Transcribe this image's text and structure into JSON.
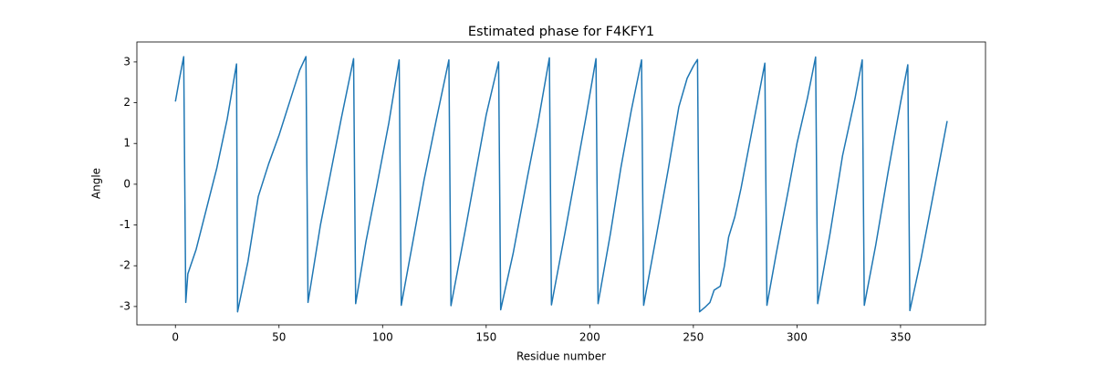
{
  "chart_data": {
    "type": "line",
    "title": "Estimated phase for F4KFY1",
    "x_label": "Residue number",
    "y_label": "Angle",
    "x": [
      0,
      2,
      4,
      5,
      6,
      10,
      15,
      20,
      25,
      29.5,
      30,
      35,
      40,
      45,
      50,
      55,
      60,
      63,
      64,
      70,
      75,
      80,
      86,
      87,
      92,
      97,
      103,
      108,
      109,
      115,
      120,
      126,
      132,
      133,
      140,
      145,
      150,
      156,
      157,
      163,
      170,
      175,
      180.5,
      181.5,
      188,
      193,
      198,
      203,
      204,
      210,
      215,
      220,
      225,
      226,
      232,
      238,
      243,
      247,
      250,
      252,
      253,
      256,
      258,
      260,
      263,
      265,
      267,
      270,
      273,
      279,
      284.5,
      285.5,
      290,
      296,
      300,
      305,
      309,
      310,
      316,
      322,
      328,
      331.5,
      332.5,
      338,
      344,
      350,
      353.5,
      354.5,
      360,
      366,
      372.5
    ],
    "series": [
      {
        "name": "phase",
        "color": "#1f77b4",
        "values": [
          2.03,
          2.6,
          3.13,
          -2.9,
          -2.2,
          -1.6,
          -0.6,
          0.4,
          1.6,
          2.95,
          -3.13,
          -1.9,
          -0.3,
          0.5,
          1.2,
          2.0,
          2.8,
          3.13,
          -2.9,
          -1.0,
          0.3,
          1.6,
          3.08,
          -2.93,
          -1.4,
          -0.1,
          1.5,
          3.05,
          -2.97,
          -1.3,
          0.1,
          1.6,
          3.05,
          -2.98,
          -1.1,
          0.3,
          1.7,
          3.0,
          -3.08,
          -1.7,
          0.2,
          1.5,
          3.1,
          -2.96,
          -1.2,
          0.2,
          1.6,
          3.08,
          -2.93,
          -1.2,
          0.4,
          1.8,
          3.05,
          -2.97,
          -1.3,
          0.4,
          1.9,
          2.6,
          2.9,
          3.06,
          -3.13,
          -3.0,
          -2.9,
          -2.6,
          -2.5,
          -2.0,
          -1.3,
          -0.8,
          -0.1,
          1.5,
          2.97,
          -2.97,
          -1.7,
          -0.1,
          1.0,
          2.1,
          3.12,
          -2.93,
          -1.2,
          0.7,
          2.1,
          3.05,
          -2.97,
          -1.5,
          0.3,
          2.0,
          2.93,
          -3.1,
          -1.8,
          -0.2,
          1.55
        ]
      }
    ],
    "xlim": [
      -18.6,
      391
    ],
    "ylim": [
      -3.45,
      3.49
    ],
    "xticks": [
      0,
      50,
      100,
      150,
      200,
      250,
      300,
      350
    ],
    "yticks": [
      -3,
      -2,
      -1,
      0,
      1,
      2,
      3
    ]
  }
}
